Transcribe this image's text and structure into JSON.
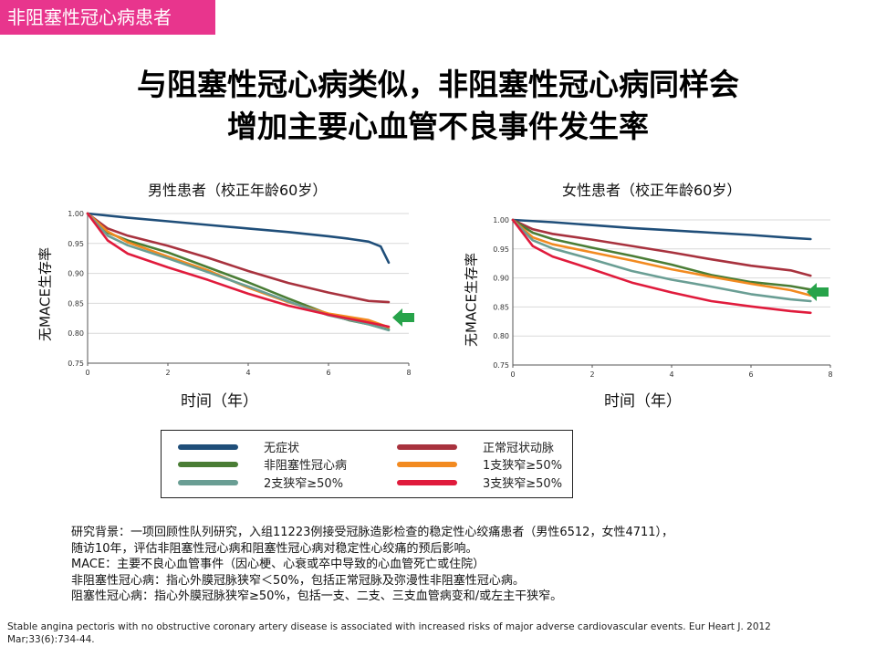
{
  "tag": "非阻塞性冠心病患者",
  "title_line1": "与阻塞性冠心病类似，非阻塞性冠心病同样会",
  "title_line2": "增加主要心血管不良事件发生率",
  "colors": {
    "no_symptom": "#1f4e79",
    "normal": "#a8323e",
    "nonobstructive": "#4a7d35",
    "one_vessel": "#f28a20",
    "two_vessel": "#6a9e94",
    "three_vessel": "#e01b3c",
    "arrow": "#27a34a",
    "tag_bg": "#e8358d"
  },
  "legend": {
    "no_symptom": "无症状",
    "normal": "正常冠状动脉",
    "nonobstructive": "非阻塞性冠心病",
    "one_vessel": "1支狭窄≥50%",
    "two_vessel": "2支狭窄≥50%",
    "three_vessel": "3支狭窄≥50%"
  },
  "notes": [
    "研究背景：一项回顾性队列研究，入组11223例接受冠脉造影检查的稳定性心绞痛患者（男性6512，女性4711），",
    "随访10年，评估非阻塞性冠心病和阻塞性冠心病对稳定性心绞痛的预后影响。",
    "MACE：主要不良心血管事件（因心梗、心衰或卒中导致的心血管死亡或住院）",
    "非阻塞性冠心病：指心外膜冠脉狭窄＜50%，包括正常冠脉及弥漫性非阻塞性冠心病。",
    "阻塞性冠心病：指心外膜冠脉狭窄≥50%，包括一支、二支、三支血管病变和/或左主干狭窄。"
  ],
  "reference_line1": "Stable angina pectoris with no obstructive coronary artery disease is associated with increased risks of major adverse cardiovascular events. Eur Heart J. 2012",
  "reference_line2": "Mar;33(6):734-44.",
  "chart_data": [
    {
      "type": "line",
      "title": "男性患者（校正年龄60岁）",
      "xlabel": "时间（年）",
      "ylabel": "无MACE生存率",
      "xlim": [
        0,
        8
      ],
      "ylim": [
        0.75,
        1.0
      ],
      "xticks": [
        "0",
        "2",
        "4",
        "6",
        "8"
      ],
      "yticks": [
        "0.75",
        "0.80",
        "0.85",
        "0.90",
        "0.95",
        "1.00"
      ],
      "series": [
        {
          "name": "无症状",
          "key": "no_symptom",
          "x": [
            0,
            1,
            2,
            3,
            4,
            5,
            6,
            6.5,
            7,
            7.3,
            7.5
          ],
          "y": [
            1.0,
            0.993,
            0.987,
            0.981,
            0.975,
            0.969,
            0.962,
            0.958,
            0.953,
            0.945,
            0.918
          ]
        },
        {
          "name": "正常冠状动脉",
          "key": "normal",
          "x": [
            0,
            0.5,
            1,
            2,
            3,
            4,
            5,
            6,
            7,
            7.5
          ],
          "y": [
            1.0,
            0.975,
            0.963,
            0.946,
            0.926,
            0.904,
            0.884,
            0.868,
            0.854,
            0.852
          ]
        },
        {
          "name": "非阻塞性冠心病",
          "key": "nonobstructive",
          "x": [
            0,
            0.5,
            1,
            2,
            3,
            4,
            5,
            6,
            6.5,
            7,
            7.5
          ],
          "y": [
            1.0,
            0.968,
            0.955,
            0.935,
            0.91,
            0.885,
            0.858,
            0.832,
            0.822,
            0.815,
            0.806
          ]
        },
        {
          "name": "1支狭窄≥50%",
          "key": "one_vessel",
          "x": [
            0,
            0.5,
            1,
            2,
            3,
            4,
            5,
            6,
            7,
            7.5
          ],
          "y": [
            1.0,
            0.97,
            0.952,
            0.928,
            0.905,
            0.876,
            0.852,
            0.833,
            0.822,
            0.81
          ]
        },
        {
          "name": "2支狭窄≥50%",
          "key": "two_vessel",
          "x": [
            0,
            0.5,
            1,
            2,
            3,
            4,
            5,
            6,
            7,
            7.5
          ],
          "y": [
            1.0,
            0.963,
            0.947,
            0.925,
            0.902,
            0.878,
            0.853,
            0.83,
            0.815,
            0.805
          ]
        },
        {
          "name": "3支狭窄≥50%",
          "key": "three_vessel",
          "x": [
            0,
            0.5,
            1,
            2,
            3,
            4,
            5,
            6,
            7,
            7.5
          ],
          "y": [
            1.0,
            0.955,
            0.933,
            0.91,
            0.889,
            0.866,
            0.846,
            0.831,
            0.818,
            0.811
          ]
        }
      ]
    },
    {
      "type": "line",
      "title": "女性患者（校正年龄60岁）",
      "xlabel": "时间（年）",
      "ylabel": "无MACE生存率",
      "xlim": [
        0,
        8
      ],
      "ylim": [
        0.75,
        1.0
      ],
      "xticks": [
        "0",
        "2",
        "4",
        "6",
        "8"
      ],
      "yticks": [
        "0.75",
        "0.80",
        "0.85",
        "0.90",
        "0.95",
        "1.00"
      ],
      "series": [
        {
          "name": "无症状",
          "key": "no_symptom",
          "x": [
            0,
            1,
            2,
            3,
            4,
            5,
            6,
            7,
            7.5
          ],
          "y": [
            1.0,
            0.996,
            0.991,
            0.986,
            0.982,
            0.978,
            0.974,
            0.969,
            0.967
          ]
        },
        {
          "name": "正常冠状动脉",
          "key": "normal",
          "x": [
            0,
            0.5,
            1,
            2,
            3,
            4,
            5,
            6,
            7,
            7.5
          ],
          "y": [
            1.0,
            0.984,
            0.976,
            0.966,
            0.955,
            0.944,
            0.932,
            0.921,
            0.913,
            0.904
          ]
        },
        {
          "name": "非阻塞性冠心病",
          "key": "nonobstructive",
          "x": [
            0,
            0.5,
            1,
            2,
            3,
            4,
            5,
            6,
            7,
            7.5
          ],
          "y": [
            1.0,
            0.978,
            0.967,
            0.952,
            0.938,
            0.923,
            0.905,
            0.893,
            0.886,
            0.88
          ]
        },
        {
          "name": "1支狭窄≥50%",
          "key": "one_vessel",
          "x": [
            0,
            0.5,
            1,
            2,
            3,
            4,
            5,
            6,
            7,
            7.5
          ],
          "y": [
            1.0,
            0.97,
            0.958,
            0.944,
            0.93,
            0.915,
            0.902,
            0.89,
            0.879,
            0.87
          ]
        },
        {
          "name": "2支狭窄≥50%",
          "key": "two_vessel",
          "x": [
            0,
            0.5,
            1,
            2,
            3,
            4,
            5,
            6,
            7,
            7.5
          ],
          "y": [
            1.0,
            0.965,
            0.951,
            0.932,
            0.912,
            0.897,
            0.885,
            0.872,
            0.863,
            0.86
          ]
        },
        {
          "name": "3支狭窄≥50%",
          "key": "three_vessel",
          "x": [
            0,
            0.5,
            1,
            2,
            3,
            4,
            5,
            6,
            7,
            7.5
          ],
          "y": [
            1.0,
            0.955,
            0.937,
            0.915,
            0.892,
            0.875,
            0.86,
            0.851,
            0.843,
            0.84
          ]
        }
      ]
    }
  ]
}
